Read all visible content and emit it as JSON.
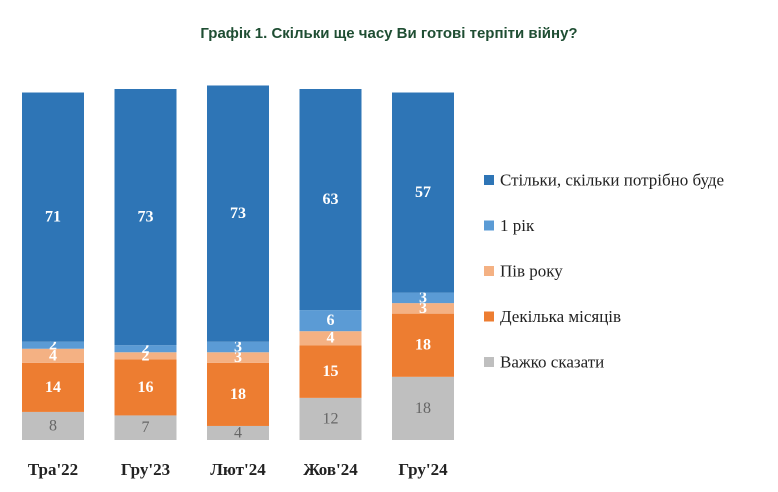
{
  "chart_data": {
    "type": "bar",
    "stacked": true,
    "title": "Графік 1. Скільки ще часу Ви готові терпіти війну?",
    "categories": [
      "Тра'22",
      "Гру'23",
      "Лют'24",
      "Жов'24",
      "Гру'24"
    ],
    "series": [
      {
        "name": "Важко сказати",
        "color": "#bfbfbf",
        "label_color": "#666666",
        "label_bold": false,
        "values": [
          8,
          7,
          4,
          12,
          18
        ]
      },
      {
        "name": "Декілька місяців",
        "color": "#ed7d31",
        "label_color": "#ffffff",
        "label_bold": true,
        "values": [
          14,
          16,
          18,
          15,
          18
        ]
      },
      {
        "name": "Пів року",
        "color": "#f4b183",
        "label_color": "#ffffff",
        "label_bold": true,
        "values": [
          4,
          2,
          3,
          4,
          3
        ]
      },
      {
        "name": "1 рік",
        "color": "#5b9bd5",
        "label_color": "#ffffff",
        "label_bold": true,
        "values": [
          2,
          2,
          3,
          6,
          3
        ]
      },
      {
        "name": "Стільки, скільки потрібно буде",
        "color": "#2e75b6",
        "label_color": "#ffffff",
        "label_bold": true,
        "values": [
          71,
          73,
          73,
          63,
          57
        ]
      }
    ],
    "legend_order": [
      "Стільки, скільки потрібно буде",
      "1 рік",
      "Пів року",
      "Декілька місяців",
      "Важко сказати"
    ],
    "legend_position": "right",
    "ylim": [
      0,
      100
    ],
    "grid": false
  }
}
